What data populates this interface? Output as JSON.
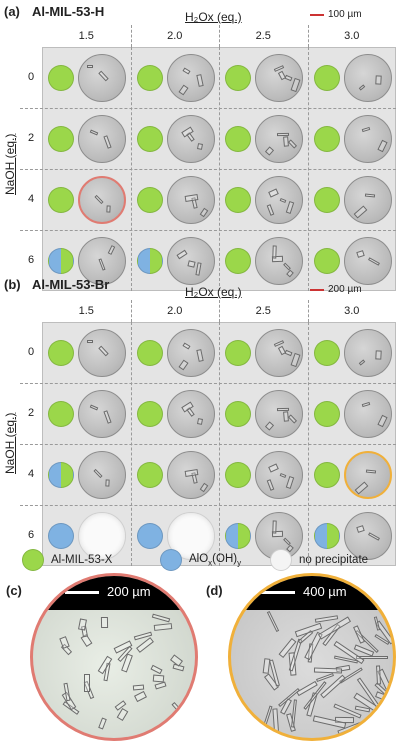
{
  "colors": {
    "al_mil": "#9bd74a",
    "aloxoh": "#7fb2e2",
    "no_precip": "#f4f4f4",
    "highlight_red": "#e07b72",
    "highlight_orange": "#f0b03a",
    "scale_red": "#cc3333"
  },
  "panel_a": {
    "letter": "(a)",
    "title": "Al-MIL-53-H",
    "scale_label": "100 µm",
    "col_axis": "H₂Ox (eq.)",
    "row_axis": "NaOH (eq.)",
    "col_headers": [
      "1.5",
      "2.0",
      "2.5",
      "3.0"
    ],
    "row_headers": [
      "0",
      "2",
      "4",
      "6"
    ],
    "cells": [
      [
        "green",
        "green",
        "green",
        "green"
      ],
      [
        "green",
        "green",
        "green",
        "green"
      ],
      [
        "green",
        "green",
        "green",
        "green"
      ],
      [
        "blue-green",
        "blue-green",
        "green",
        "green"
      ]
    ]
  },
  "panel_b": {
    "letter": "(b)",
    "title": "Al-MIL-53-Br",
    "scale_label": "200 µm",
    "col_axis": "H₂Ox (eq.)",
    "row_axis": "NaOH (eq.)",
    "col_headers": [
      "1.5",
      "2.0",
      "2.5",
      "3.0"
    ],
    "row_headers": [
      "0",
      "2",
      "4",
      "6"
    ],
    "cells": [
      [
        "green",
        "green",
        "green",
        "green"
      ],
      [
        "green",
        "green",
        "green",
        "green"
      ],
      [
        "blue-green",
        "green",
        "green",
        "green"
      ],
      [
        "blue",
        "blue",
        "blue-green",
        "blue-green"
      ]
    ]
  },
  "legend": {
    "al_mil_label": "Al-MIL-53-X",
    "aloxoh_label": "AlOx(OH)y",
    "aloxoh_main": "AlO",
    "aloxoh_sub1": "x",
    "aloxoh_mid": "(OH)",
    "aloxoh_sub2": "y",
    "no_precip_label": "no precipitate"
  },
  "panel_c": {
    "letter": "(c)",
    "scale_label": "200 µm"
  },
  "panel_d": {
    "letter": "(d)",
    "scale_label": "400 µm"
  }
}
